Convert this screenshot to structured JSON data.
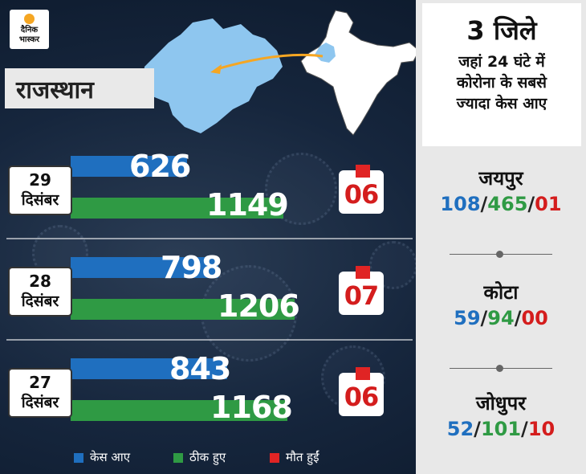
{
  "brand": {
    "logo_line1": "दैनिक",
    "logo_line2": "भास्कर"
  },
  "state_label": "राजस्थान",
  "colors": {
    "cases": "#1f6fbf",
    "recovered": "#2f9a44",
    "deaths": "#e02424"
  },
  "chart_data": {
    "type": "bar",
    "orientation": "horizontal",
    "categories": [
      "29 दिसंबर",
      "28 दिसंबर",
      "27 दिसंबर"
    ],
    "series": [
      {
        "name": "केस आए",
        "values": [
          626,
          798,
          843
        ]
      },
      {
        "name": "ठीक हुए",
        "values": [
          1149,
          1206,
          1168
        ]
      },
      {
        "name": "मौत हुईं",
        "values": [
          "06",
          "07",
          "06"
        ]
      }
    ],
    "rows": [
      {
        "day": "29",
        "month": "दिसंबर",
        "cases": "626",
        "recovered": "1149",
        "deaths": "06"
      },
      {
        "day": "28",
        "month": "दिसंबर",
        "cases": "798",
        "recovered": "1206",
        "deaths": "07"
      },
      {
        "day": "27",
        "month": "दिसंबर",
        "cases": "843",
        "recovered": "1168",
        "deaths": "06"
      }
    ],
    "legend": [
      {
        "label": "केस आए",
        "color": "#1f6fbf"
      },
      {
        "label": "ठीक हुए",
        "color": "#2f9a44"
      },
      {
        "label": "मौत हुईं",
        "color": "#e02424"
      }
    ],
    "legend_position": "bottom"
  },
  "panel": {
    "title": "3 जिले",
    "subtitle_lines": [
      "जहां 24 घंटे में",
      "कोरोना के सबसे",
      "ज्यादा केस आए"
    ],
    "districts": [
      {
        "name": "जयपुर",
        "cases": "108",
        "recovered": "465",
        "deaths": "01"
      },
      {
        "name": "कोटा",
        "cases": "59",
        "recovered": "94",
        "deaths": "00"
      },
      {
        "name": "जोधुपर",
        "cases": "52",
        "recovered": "101",
        "deaths": "10"
      }
    ]
  }
}
